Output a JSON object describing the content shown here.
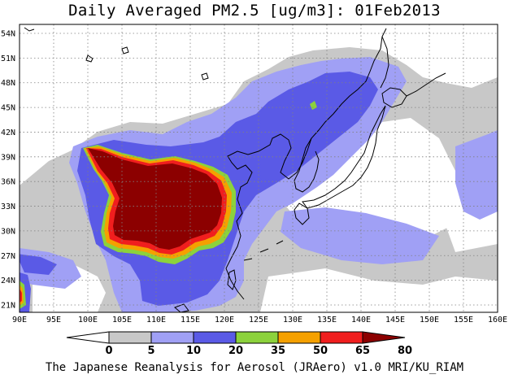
{
  "title": "Daily Averaged PM2.5 [ug/m3]: 01Feb2013",
  "footer": "The Japanese Reanalysis for Aerosol (JRAero) v1.0 MRI/KU_RIAM",
  "map": {
    "lon_labels": [
      "90E",
      "95E",
      "100E",
      "105E",
      "110E",
      "115E",
      "120E",
      "125E",
      "130E",
      "135E",
      "140E",
      "145E",
      "150E",
      "155E",
      "160E"
    ],
    "lat_labels": [
      "54N",
      "51N",
      "48N",
      "45N",
      "42N",
      "39N",
      "36N",
      "33N",
      "30N",
      "27N",
      "24N",
      "21N"
    ]
  },
  "colorbar": {
    "labels": [
      "0",
      "5",
      "10",
      "20",
      "35",
      "50",
      "65",
      "80"
    ],
    "colors": [
      "#ffffff",
      "#c8c8c8",
      "#a0a0f5",
      "#5a5ae6",
      "#8cd23c",
      "#f5a000",
      "#f01e1e",
      "#8c0000"
    ]
  },
  "palette": {
    "gray": "#c8c8c8",
    "light_blue": "#a0a0f5",
    "blue": "#5a5ae6",
    "green": "#8cd23c",
    "orange": "#f5a000",
    "red": "#f01e1e",
    "dark_red": "#8c0000"
  }
}
